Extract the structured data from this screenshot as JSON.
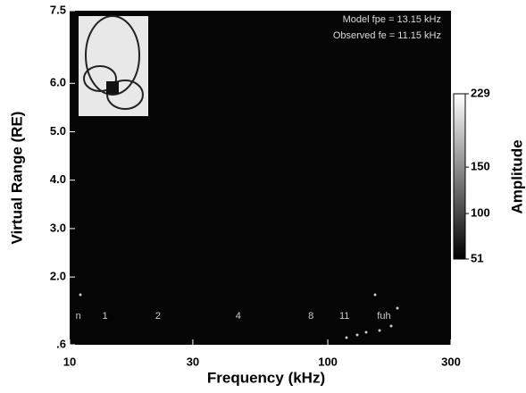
{
  "chart_data": {
    "type": "plasmagram",
    "x_label": "Frequency (kHz)",
    "y_label": "Virtual Range (RE)",
    "xscale": "log",
    "xlim": [
      10,
      300
    ],
    "xticks": [
      10,
      30,
      100,
      300
    ],
    "ylim": [
      0.6,
      7.5
    ],
    "yticks": [
      {
        "value": 0.6,
        "label": ".6"
      },
      {
        "value": 2.0,
        "label": "2.0"
      },
      {
        "value": 3.0,
        "label": "3.0"
      },
      {
        "value": 4.0,
        "label": "4.0"
      },
      {
        "value": 5.0,
        "label": "5.0"
      },
      {
        "value": 6.0,
        "label": "6.0"
      },
      7.5
    ],
    "annotations": [
      "Model fpe = 13.15 kHz",
      "Observed fe = 11.15 kHz"
    ],
    "resonances": {
      "labels": [
        "n",
        "1",
        "2",
        "4",
        "8",
        "11",
        "fuh"
      ],
      "x": [
        10.8,
        13.7,
        22,
        45,
        86,
        116,
        165
      ]
    },
    "colorbar": {
      "label": "Amplitude",
      "lim": [
        51,
        229
      ],
      "ticks": [
        51,
        100,
        150,
        229
      ],
      "colors": [
        "#000000",
        "#ffffff"
      ]
    }
  }
}
